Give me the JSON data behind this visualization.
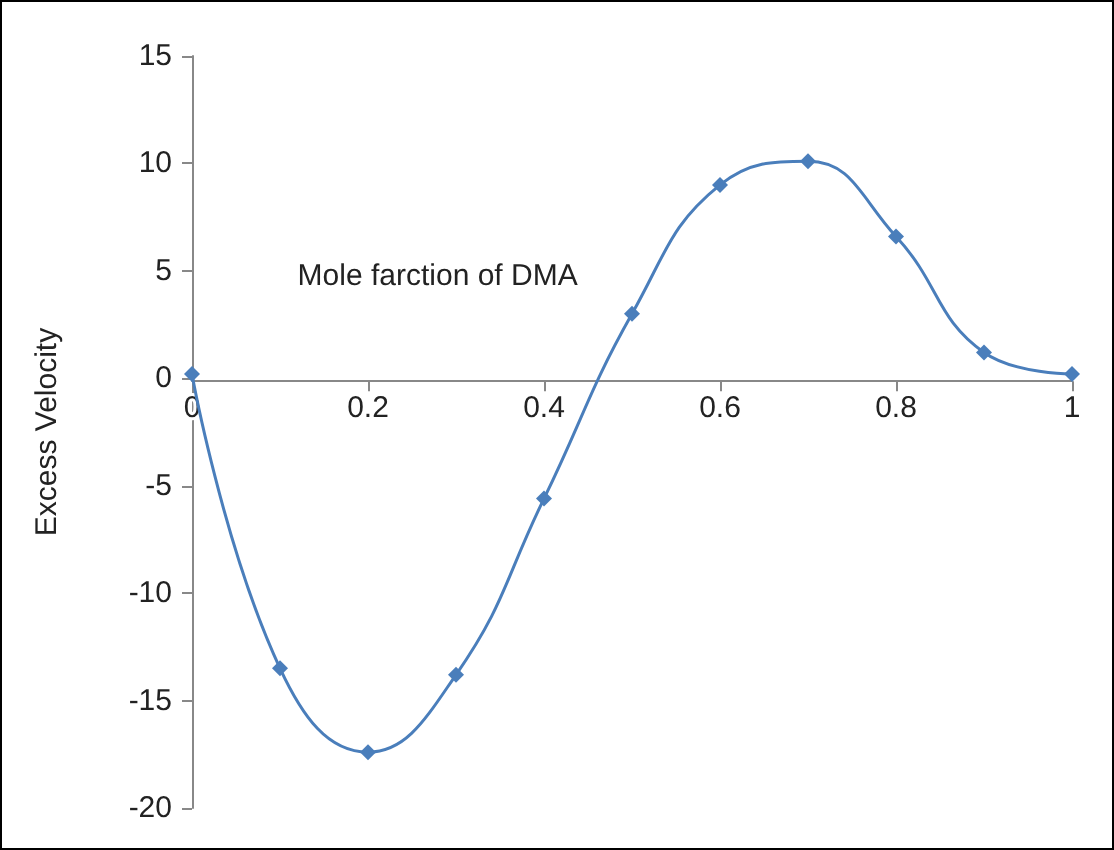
{
  "chart_data": {
    "type": "line",
    "xlabel": "Mole farction of DMA",
    "ylabel": "Excess Velocity",
    "x": [
      0,
      0.1,
      0.2,
      0.3,
      0.4,
      0.5,
      0.6,
      0.7,
      0.8,
      0.9,
      1
    ],
    "series": [
      {
        "color": "#4a7ebb",
        "values": [
          0.2,
          -13.5,
          -17.4,
          -13.8,
          -5.6,
          3.0,
          9.0,
          10.1,
          6.6,
          1.2,
          0.2
        ]
      }
    ],
    "xlim": [
      0,
      1
    ],
    "xticks": [
      0,
      0.2,
      0.4,
      0.6,
      0.8,
      1
    ],
    "ylim": [
      -20,
      15
    ],
    "yticks": [
      -20,
      -15,
      -10,
      -5,
      0,
      5,
      10,
      15
    ],
    "marker": "diamond",
    "line_style": "solid"
  }
}
